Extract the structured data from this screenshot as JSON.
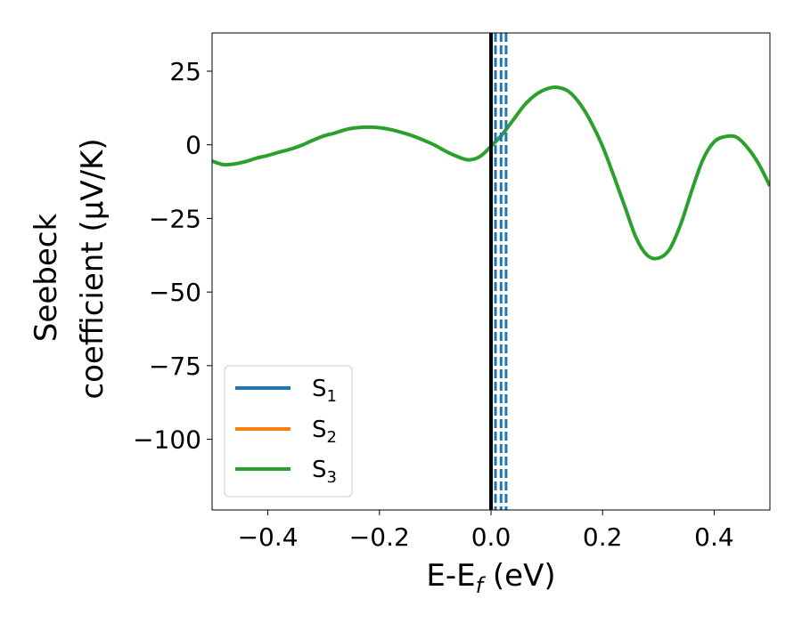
{
  "chart_data": {
    "type": "line",
    "xlabel": "E-E",
    "xlabel_sub": "f",
    "xlabel_unit": " (eV)",
    "ylabel_line1": "Seebeck",
    "ylabel_line2": "coefficient  (μV/K)",
    "xlim": [
      -0.5,
      0.5
    ],
    "ylim": [
      -124,
      38
    ],
    "xticks": [
      -0.4,
      -0.2,
      0.0,
      0.2,
      0.4
    ],
    "xtick_labels": [
      "−0.4",
      "−0.2",
      "0.0",
      "0.2",
      "0.4"
    ],
    "yticks": [
      25,
      0,
      -25,
      -50,
      -75,
      -100
    ],
    "ytick_labels": [
      "25",
      "0",
      "−25",
      "−50",
      "−75",
      "−100"
    ],
    "legend_position": "lower-left",
    "series": [
      {
        "name": "S",
        "sub": "1",
        "color": "#1f77b4",
        "x": [],
        "y": []
      },
      {
        "name": "S",
        "sub": "2",
        "color": "#ff7f0e",
        "x": [],
        "y": []
      },
      {
        "name": "S",
        "sub": "3",
        "color": "#2ca02c",
        "x": [
          -0.5,
          -0.48,
          -0.46,
          -0.44,
          -0.42,
          -0.4,
          -0.38,
          -0.36,
          -0.34,
          -0.32,
          -0.3,
          -0.28,
          -0.26,
          -0.24,
          -0.22,
          -0.2,
          -0.18,
          -0.16,
          -0.14,
          -0.12,
          -0.1,
          -0.08,
          -0.06,
          -0.04,
          -0.02,
          0.0,
          0.02,
          0.04,
          0.06,
          0.08,
          0.1,
          0.12,
          0.14,
          0.16,
          0.18,
          0.2,
          0.22,
          0.24,
          0.26,
          0.28,
          0.3,
          0.32,
          0.34,
          0.36,
          0.38,
          0.4,
          0.42,
          0.44,
          0.46,
          0.48,
          0.5
        ],
        "y": [
          -5.5,
          -6.7,
          -6.5,
          -5.7,
          -4.5,
          -3.6,
          -2.5,
          -1.5,
          -0.2,
          1.5,
          3.0,
          4.0,
          5.2,
          5.8,
          6.0,
          5.8,
          5.2,
          4.2,
          3.0,
          1.5,
          -0.2,
          -2.3,
          -4.0,
          -5.1,
          -4.0,
          -0.5,
          3.5,
          8.5,
          13.5,
          17.0,
          19.0,
          19.5,
          18.0,
          13.8,
          7.5,
          -0.5,
          -10.5,
          -21.0,
          -31.5,
          -37.5,
          -38.5,
          -35.5,
          -27.0,
          -15.5,
          -5.0,
          1.0,
          2.8,
          2.6,
          -1.0,
          -6.5,
          -14.0
        ]
      }
    ],
    "vertical_lines": [
      {
        "x": 0.0,
        "color": "#000000",
        "style": "solid"
      },
      {
        "x": 0.008,
        "color": "#1f77b4",
        "style": "dashed"
      },
      {
        "x": 0.018,
        "color": "#1f77b4",
        "style": "dashed"
      },
      {
        "x": 0.027,
        "color": "#1f77b4",
        "style": "dashed"
      }
    ]
  }
}
